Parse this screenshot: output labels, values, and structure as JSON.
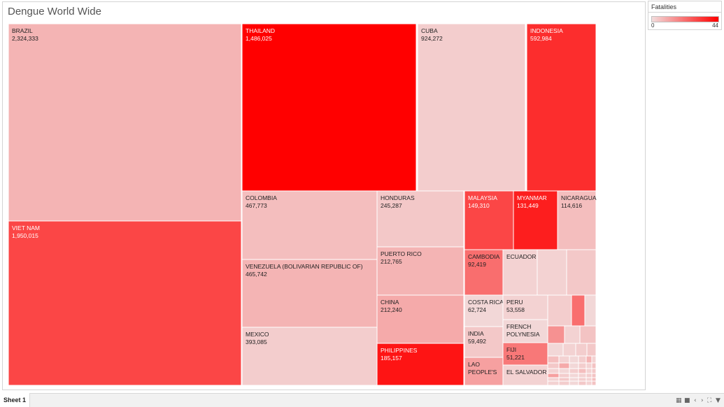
{
  "chart_data": {
    "type": "treemap",
    "title": "Dengue World Wide",
    "size_measure": "cases",
    "color_measure": "Fatalities",
    "color_range": [
      0,
      44
    ],
    "color_low": "#f2dcdc",
    "color_high": "#ff0000",
    "labeled_cells": [
      {
        "country": "BRAZIL",
        "cases": 2324333,
        "cases_label": "2,324,333",
        "fatalities": 8
      },
      {
        "country": "VIET NAM",
        "cases": 1950015,
        "cases_label": "1,950,015",
        "fatalities": 30
      },
      {
        "country": "THAILAND",
        "cases": 1486025,
        "cases_label": "1,486,025",
        "fatalities": 44
      },
      {
        "country": "CUBA",
        "cases": 924272,
        "cases_label": "924,272",
        "fatalities": 3
      },
      {
        "country": "INDONESIA",
        "cases": 592984,
        "cases_label": "592,984",
        "fatalities": 35
      },
      {
        "country": "COLOMBIA",
        "cases": 467773,
        "cases_label": "467,773",
        "fatalities": 6
      },
      {
        "country": "VENEZUELA (BOLIVARIAN REPUBLIC OF)",
        "cases": 465742,
        "cases_label": "465,742",
        "fatalities": 8
      },
      {
        "country": "MEXICO",
        "cases": 393085,
        "cases_label": "393,085",
        "fatalities": 3
      },
      {
        "country": "HONDURAS",
        "cases": 245287,
        "cases_label": "245,287",
        "fatalities": 4
      },
      {
        "country": "PUERTO RICO",
        "cases": 212765,
        "cases_label": "212,765",
        "fatalities": 8
      },
      {
        "country": "CHINA",
        "cases": 212240,
        "cases_label": "212,240",
        "fatalities": 10
      },
      {
        "country": "PHILIPPINES",
        "cases": 185157,
        "cases_label": "185,157",
        "fatalities": 40
      },
      {
        "country": "MALAYSIA",
        "cases": 149310,
        "cases_label": "149,310",
        "fatalities": 30
      },
      {
        "country": "MYANMAR",
        "cases": 131449,
        "cases_label": "131,449",
        "fatalities": 38
      },
      {
        "country": "NICARAGUA",
        "cases": 114616,
        "cases_label": "114,616",
        "fatalities": 6
      },
      {
        "country": "CAMBODIA",
        "cases": 92419,
        "cases_label": "92,419",
        "fatalities": 22
      },
      {
        "country": "ECUADOR",
        "cases": null,
        "cases_label": "",
        "fatalities": 2
      },
      {
        "country": "COSTA RICA",
        "cases": 62724,
        "cases_label": "62,724",
        "fatalities": 1
      },
      {
        "country": "PERU",
        "cases": 53558,
        "cases_label": "53,558",
        "fatalities": 2
      },
      {
        "country": "INDIA",
        "cases": 59492,
        "cases_label": "59,492",
        "fatalities": 4
      },
      {
        "country": "FRENCH POLYNESIA",
        "cases": null,
        "cases_label": "",
        "fatalities": 1
      },
      {
        "country": "FIJI",
        "cases": 51221,
        "cases_label": "51,221",
        "fatalities": 20
      },
      {
        "country": "LAO PEOPLE'S",
        "cases": null,
        "cases_label": "",
        "fatalities": 12
      },
      {
        "country": "EL SALVADOR",
        "cases": null,
        "cases_label": "",
        "fatalities": 2
      }
    ],
    "unlabeled_cell_fatalities": [
      2,
      4,
      3,
      22,
      1,
      15,
      2,
      5,
      1,
      2,
      3,
      4,
      6,
      2,
      1,
      3,
      8,
      2,
      4,
      10,
      1,
      3,
      2,
      5,
      2,
      1,
      3,
      6,
      2,
      4,
      12,
      3,
      1,
      2,
      3,
      5,
      2,
      4,
      1,
      3,
      2,
      6,
      2,
      3,
      1,
      4,
      2,
      5,
      3,
      2,
      7,
      3
    ]
  },
  "legend": {
    "title": "Fatalities",
    "min_label": "0",
    "max_label": "44"
  },
  "sheet_tab": {
    "label": "Sheet 1"
  },
  "nav_icons": [
    "grid-view-icon",
    "filmstrip-icon",
    "previous-icon",
    "next-icon",
    "fullscreen-icon",
    "presentation-icon"
  ]
}
